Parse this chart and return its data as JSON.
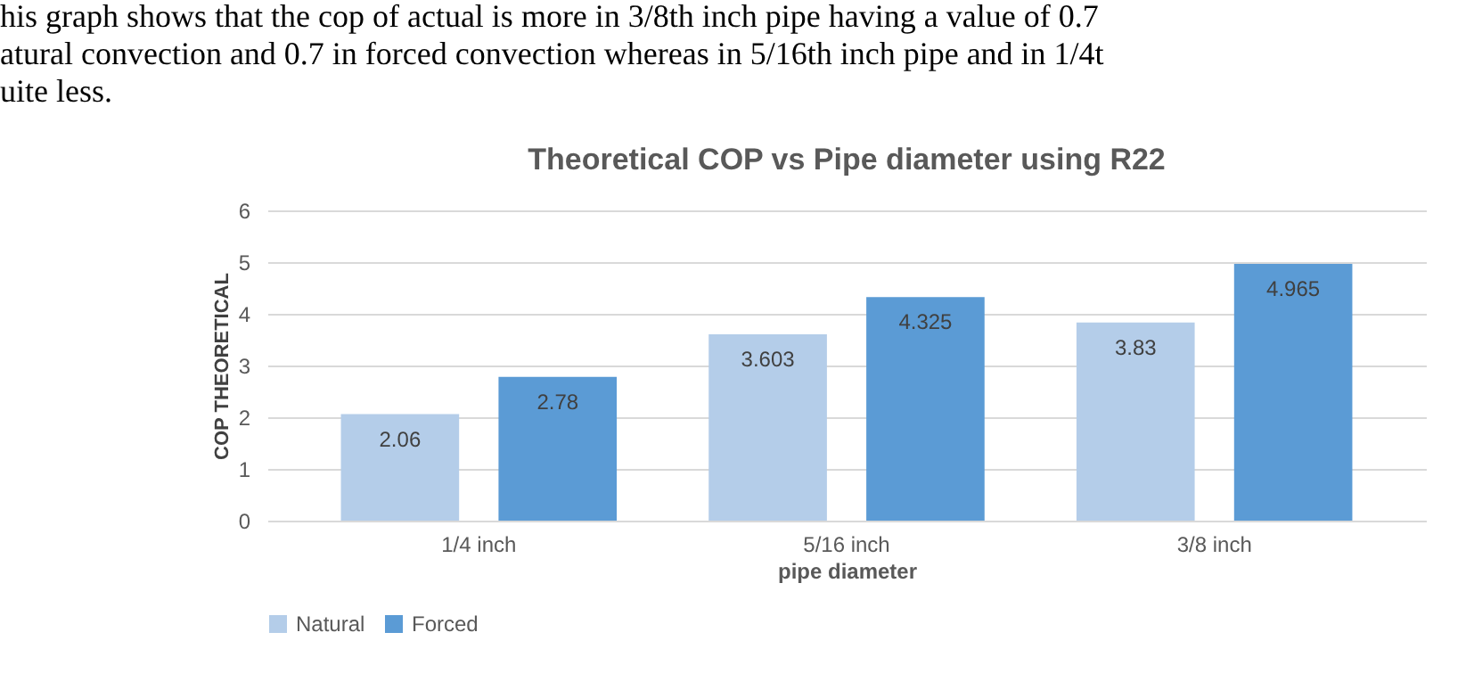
{
  "chart_data": {
    "type": "bar",
    "title": "Theoretical COP vs Pipe diameter using R22",
    "annotations": [
      "his graph shows that  the cop of  actual is more in 3/8th inch pipe having a value of 0.7",
      "atural convection and  0.7 in forced convection whereas in 5/16th inch pipe and  in 1/4t",
      "uite less."
    ],
    "xlabel": "pipe diameter",
    "ylabel": "COP THEORETICAL",
    "categories": [
      "1/4 inch",
      "5/16 inch",
      "3/8 inch"
    ],
    "series": [
      {
        "name": "Natural",
        "color": "#b4cde9",
        "values": [
          2.06,
          3.603,
          3.83
        ]
      },
      {
        "name": "Forced",
        "color": "#5b9bd5",
        "values": [
          2.78,
          4.325,
          4.965
        ]
      }
    ],
    "ylim": [
      0,
      6
    ],
    "yticks": [
      0,
      1,
      2,
      3,
      4,
      5,
      6
    ],
    "grid": "y",
    "legend": "bottom",
    "data_labels": true
  }
}
